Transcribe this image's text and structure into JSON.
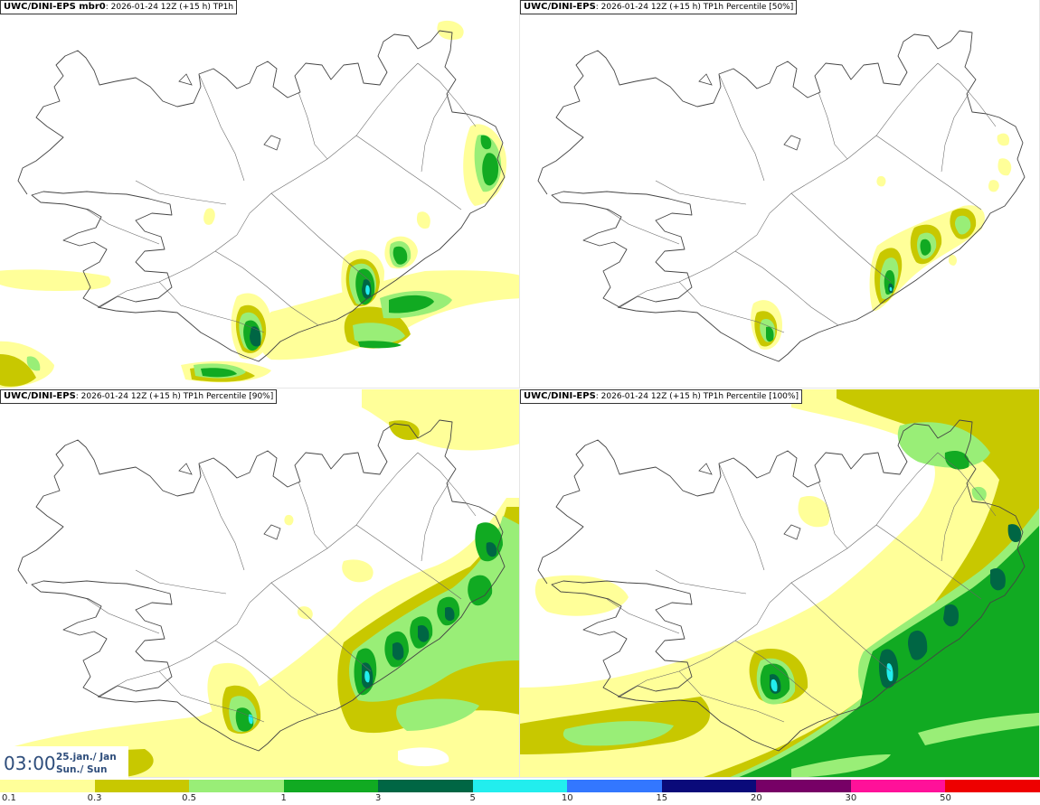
{
  "panels": [
    {
      "model": "UWC/DINI-EPS mbr0",
      "details": ": 2026-01-24 12Z (+15 h) TP1h"
    },
    {
      "model": "UWC/DINI-EPS",
      "details": ": 2026-01-24 12Z (+15 h) TP1h Percentile [50%]"
    },
    {
      "model": "UWC/DINI-EPS",
      "details": ": 2026-01-24 12Z (+15 h) TP1h Percentile [90%]"
    },
    {
      "model": "UWC/DINI-EPS",
      "details": ": 2026-01-24 12Z (+15 h) TP1h Percentile [100%]"
    }
  ],
  "time_display": {
    "time": "03:00",
    "date": "25.jan./ Jan",
    "day": "Sun./ Sun"
  },
  "legend": {
    "colors": [
      "#ffff99",
      "#c8c800",
      "#99ee77",
      "#11aa22",
      "#006644",
      "#22eeee",
      "#3377ff",
      "#0a0a7a",
      "#770066",
      "#ff1199",
      "#ee0000"
    ],
    "ticks": [
      "0.1",
      "0.3",
      "0.5",
      "1",
      "3",
      "5",
      "10",
      "15",
      "20",
      "30",
      "50"
    ]
  }
}
